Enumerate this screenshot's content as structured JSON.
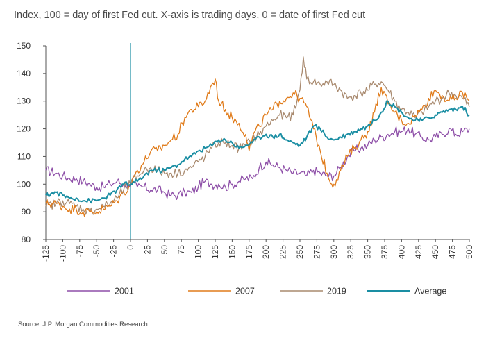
{
  "chart_data": {
    "type": "line",
    "title": "Index, 100 = day of first Fed cut. X-axis is trading days, 0 = date of first Fed cut",
    "xlabel": "",
    "ylabel": "",
    "xlim": [
      -125,
      500
    ],
    "ylim": [
      80,
      150
    ],
    "xticks": [
      "-125",
      "-100",
      "-75",
      "-50",
      "-25",
      "0",
      "25",
      "50",
      "75",
      "100",
      "125",
      "150",
      "175",
      "200",
      "225",
      "250",
      "275",
      "300",
      "325",
      "350",
      "375",
      "400",
      "425",
      "450",
      "475",
      "500"
    ],
    "yticks": [
      "80",
      "90",
      "100",
      "110",
      "120",
      "130",
      "140",
      "150"
    ],
    "reference_line_x": 0,
    "legend_position": "bottom",
    "series": [
      {
        "name": "2001",
        "color": "#8e4fa8",
        "x": [
          -125,
          -110,
          -100,
          -90,
          -80,
          -70,
          -60,
          -50,
          -40,
          -30,
          -20,
          -10,
          0,
          10,
          20,
          30,
          40,
          50,
          60,
          70,
          80,
          90,
          100,
          110,
          120,
          130,
          140,
          150,
          160,
          170,
          180,
          190,
          200,
          210,
          220,
          230,
          240,
          250,
          260,
          270,
          280,
          290,
          300,
          310,
          320,
          330,
          340,
          350,
          360,
          370,
          380,
          390,
          400,
          410,
          420,
          430,
          440,
          450,
          460,
          470,
          480,
          490,
          500
        ],
        "y": [
          105,
          104,
          103,
          102,
          102,
          101,
          100,
          99,
          99,
          100,
          101,
          100,
          100,
          99,
          99,
          98,
          98,
          97,
          96,
          96,
          97,
          97,
          99,
          101,
          100,
          100,
          99,
          100,
          101,
          102,
          102,
          106,
          108,
          107,
          106,
          105,
          104,
          104,
          103,
          105,
          104,
          103,
          103,
          106,
          110,
          112,
          113,
          114,
          116,
          117,
          118,
          119,
          119,
          120,
          118,
          117,
          116,
          117,
          118,
          120,
          118,
          119,
          120
        ]
      },
      {
        "name": "2007",
        "color": "#e07b1a",
        "x": [
          -125,
          -110,
          -100,
          -90,
          -80,
          -70,
          -60,
          -50,
          -40,
          -30,
          -20,
          -10,
          0,
          10,
          20,
          30,
          40,
          50,
          60,
          70,
          80,
          90,
          100,
          110,
          120,
          125,
          130,
          140,
          150,
          160,
          170,
          175,
          180,
          190,
          200,
          210,
          220,
          230,
          240,
          250,
          260,
          270,
          280,
          290,
          297,
          300,
          310,
          320,
          330,
          340,
          350,
          360,
          370,
          380,
          390,
          400,
          410,
          420,
          430,
          440,
          450,
          460,
          470,
          480,
          490,
          500
        ],
        "y": [
          93,
          93,
          92,
          91,
          91,
          90,
          90,
          90,
          91,
          92,
          94,
          97,
          100,
          105,
          108,
          112,
          112,
          114,
          116,
          118,
          124,
          127,
          128,
          130,
          136,
          138,
          130,
          127,
          124,
          122,
          118,
          112,
          117,
          121,
          125,
          127,
          130,
          131,
          133,
          131,
          128,
          120,
          112,
          104,
          100,
          100,
          105,
          110,
          113,
          116,
          119,
          126,
          135,
          129,
          126,
          123,
          122,
          125,
          127,
          131,
          134,
          132,
          130,
          131,
          133,
          130
        ]
      },
      {
        "name": "2019",
        "color": "#a98a6f",
        "x": [
          -125,
          -110,
          -100,
          -90,
          -80,
          -70,
          -60,
          -50,
          -40,
          -30,
          -20,
          -10,
          0,
          10,
          20,
          30,
          40,
          50,
          60,
          70,
          80,
          90,
          100,
          110,
          120,
          130,
          140,
          150,
          160,
          170,
          180,
          190,
          200,
          210,
          220,
          230,
          240,
          250,
          255,
          260,
          270,
          280,
          290,
          300,
          310,
          320,
          330,
          340,
          350,
          360,
          370,
          380,
          390,
          400,
          410,
          420,
          430,
          440,
          450,
          460,
          470,
          480,
          490,
          500
        ],
        "y": [
          92,
          93,
          94,
          93,
          92,
          91,
          90,
          91,
          92,
          93,
          95,
          98,
          100,
          103,
          105,
          106,
          105,
          104,
          104,
          104,
          105,
          106,
          108,
          110,
          113,
          115,
          115,
          114,
          113,
          114,
          116,
          118,
          121,
          123,
          125,
          124,
          125,
          134,
          146,
          138,
          137,
          136,
          137,
          136,
          134,
          131,
          132,
          133,
          134,
          136,
          137,
          134,
          130,
          127,
          126,
          124,
          126,
          128,
          130,
          131,
          133,
          132,
          131,
          128
        ]
      },
      {
        "name": "Average",
        "color": "#1a8ea3",
        "x": [
          -125,
          -110,
          -100,
          -90,
          -80,
          -70,
          -60,
          -50,
          -40,
          -30,
          -20,
          -10,
          0,
          10,
          20,
          30,
          40,
          50,
          60,
          70,
          80,
          90,
          100,
          110,
          120,
          130,
          140,
          150,
          160,
          170,
          180,
          190,
          200,
          210,
          220,
          230,
          240,
          250,
          260,
          270,
          280,
          290,
          300,
          310,
          320,
          330,
          340,
          350,
          360,
          370,
          380,
          390,
          400,
          410,
          420,
          430,
          440,
          450,
          460,
          470,
          480,
          490,
          500
        ],
        "y": [
          96,
          97,
          96,
          95,
          95,
          94,
          94,
          94,
          95,
          96,
          98,
          100,
          100,
          101,
          103,
          105,
          105,
          105,
          106,
          107,
          109,
          110,
          112,
          113,
          114,
          116,
          116,
          115,
          113,
          114,
          115,
          117,
          118,
          117,
          118,
          116,
          115,
          114,
          117,
          121,
          120,
          117,
          116,
          117,
          118,
          119,
          120,
          121,
          123,
          126,
          130,
          128,
          126,
          124,
          123,
          123,
          124,
          125,
          126,
          127,
          127,
          128,
          125
        ]
      }
    ]
  },
  "subtitle": "Index, 100 = day of first Fed cut. X-axis is trading days, 0 = date of first Fed cut",
  "source": "Source: J.P. Morgan Commodities Research"
}
